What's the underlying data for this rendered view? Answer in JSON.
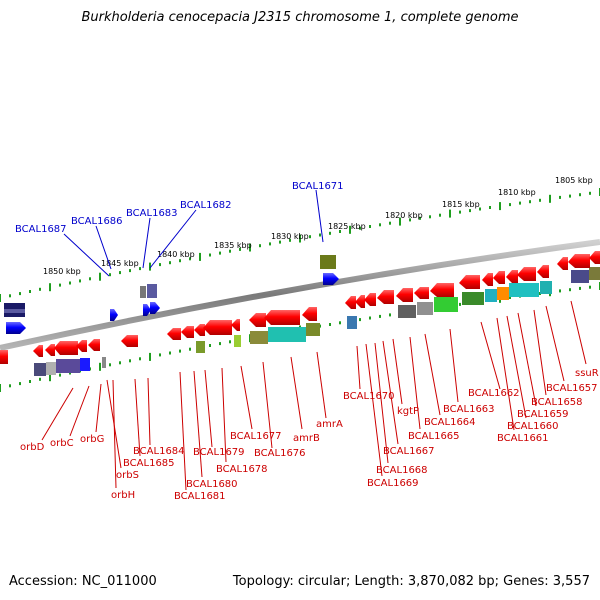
{
  "title": "Burkholderia cenocepacia J2315 chromosome 1, complete genome",
  "accession": "Accession: NC_011000",
  "summary": "Topology: circular; Length: 3,870,082 bp; Genes: 3,557",
  "colors": {
    "forward": "#0000ff",
    "reverse": "#ff0000",
    "backbone": "#8c8c8c",
    "ticks": "#1f9e1f",
    "blue_label": "#0000cc",
    "red_label": "#cc0000"
  },
  "scale_labels": [
    "1850 kbp",
    "1845 kbp",
    "1840 kbp",
    "1835 kbp",
    "1830 kbp",
    "1825 kbp",
    "1820 kbp",
    "1815 kbp",
    "1810 kbp",
    "1805 kbp"
  ],
  "top_labels": [
    "BCAL1687",
    "BCAL1686",
    "BCAL1683",
    "BCAL1682",
    "BCAL1671"
  ],
  "bottom_labels": [
    "orbD",
    "orbC",
    "orbG",
    "orbS",
    "orbH",
    "BCAL1684",
    "BCAL1685",
    "BCAL1679",
    "BCAL1680",
    "BCAL1681",
    "BCAL1678",
    "BCAL1677",
    "BCAL1676",
    "amrB",
    "amrA",
    "BCAL1670",
    "kgtP",
    "BCAL1668",
    "BCAL1669",
    "BCAL1667",
    "BCAL1665",
    "BCAL1664",
    "BCAL1663",
    "BCAL1662",
    "BCAL1661",
    "BCAL1660",
    "BCAL1659",
    "BCAL1658",
    "BCAL1657",
    "ssuR"
  ]
}
